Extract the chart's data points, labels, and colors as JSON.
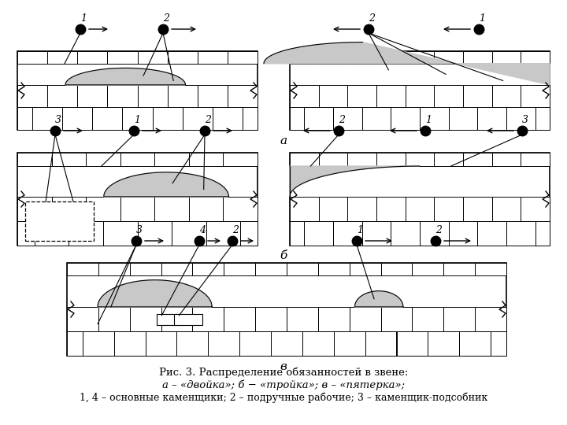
{
  "title_line1": "Рис. 3. Распределение обязанностей в звене:",
  "title_line2": "а – «двойка»; б − «тройка»; в – «пятерка»;",
  "title_line3": "1, 4 – основные каменщики; 2 – подручные рабочие; 3 – каменщик-подсобник",
  "bg_color": "#ffffff",
  "line_color": "#000000",
  "fill_color": "#c8c8c8",
  "label_a": "а",
  "label_b": "б",
  "label_v": "в"
}
